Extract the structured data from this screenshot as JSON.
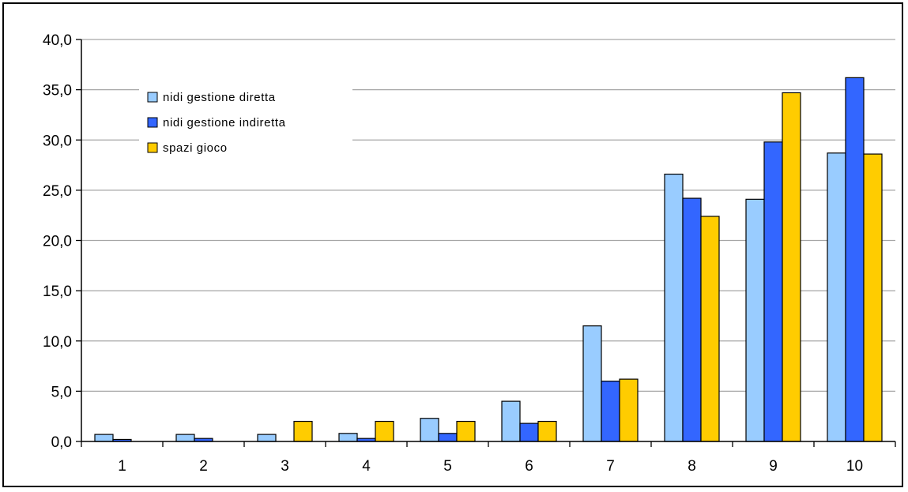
{
  "chart_data": {
    "type": "bar",
    "title": "",
    "xlabel": "",
    "ylabel": "",
    "categories": [
      "1",
      "2",
      "3",
      "4",
      "5",
      "6",
      "7",
      "8",
      "9",
      "10"
    ],
    "ylim": [
      0,
      40
    ],
    "yticks": [
      "0,0",
      "5,0",
      "10,0",
      "15,0",
      "20,0",
      "25,0",
      "30,0",
      "35,0",
      "40,0"
    ],
    "grid": true,
    "legend_position": "top-left",
    "series": [
      {
        "name": "nidi gestione diretta",
        "color": "#99ccff",
        "values": [
          0.7,
          0.7,
          0.7,
          0.8,
          2.3,
          4.0,
          11.5,
          26.6,
          24.1,
          28.7
        ]
      },
      {
        "name": "nidi gestione indiretta",
        "color": "#3366ff",
        "values": [
          0.2,
          0.3,
          0.0,
          0.3,
          0.8,
          1.8,
          6.0,
          24.2,
          29.8,
          36.2
        ]
      },
      {
        "name": "spazi gioco",
        "color": "#ffcc00",
        "values": [
          0.0,
          0.0,
          2.0,
          2.0,
          2.0,
          2.0,
          6.2,
          22.4,
          34.7,
          28.6
        ]
      }
    ]
  }
}
